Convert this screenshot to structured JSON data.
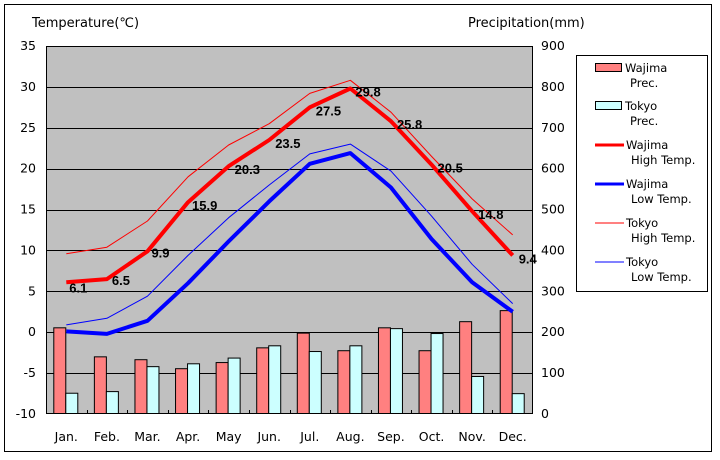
{
  "chart_data": {
    "type": "bar+line",
    "title": "",
    "ylabel_left": "Temperature(℃)",
    "ylabel_right": "Precipitation(mm)",
    "ylim_left": [
      -10,
      35
    ],
    "ylim_right": [
      0,
      900
    ],
    "yticks_left": [
      "35",
      "30",
      "25",
      "20",
      "15",
      "10",
      "5",
      "0",
      "-5",
      "-10"
    ],
    "yticks_right": [
      "900",
      "800",
      "700",
      "600",
      "500",
      "400",
      "300",
      "200",
      "100",
      "0"
    ],
    "grid": true,
    "legend_position": "right",
    "categories": [
      "Jan.",
      "Feb.",
      "Mar.",
      "Apr.",
      "May",
      "Jun.",
      "Jul.",
      "Aug.",
      "Sep.",
      "Oct.",
      "Nov.",
      "Dec."
    ],
    "series": [
      {
        "name": "Wajima Prec.",
        "legend": [
          "Wajima",
          "Prec."
        ],
        "kind": "bar",
        "axis": "right",
        "color": "#ff8080",
        "values": [
          212,
          141,
          134,
          112,
          127,
          163,
          199,
          156,
          212,
          156,
          227,
          254
        ]
      },
      {
        "name": "Tokyo Prec.",
        "legend": [
          "Tokyo",
          "Prec."
        ],
        "kind": "bar",
        "axis": "right",
        "color": "#ccffff",
        "values": [
          52,
          56,
          117,
          124,
          138,
          168,
          154,
          168,
          210,
          198,
          93,
          51
        ]
      },
      {
        "name": "Wajima High Temp.",
        "legend": [
          "Wajima",
          "High Temp."
        ],
        "kind": "line",
        "axis": "left",
        "color": "#ff0000",
        "width": "thick",
        "values": [
          6.1,
          6.5,
          9.9,
          15.9,
          20.3,
          23.5,
          27.5,
          29.8,
          25.8,
          20.5,
          14.8,
          9.4
        ],
        "labels": [
          "6.1",
          "6.5",
          "9.9",
          "15.9",
          "20.3",
          "23.5",
          "27.5",
          "29.8",
          "25.8",
          "20.5",
          "14.8",
          "9.4"
        ]
      },
      {
        "name": "Wajima Low Temp.",
        "legend": [
          "Wajima",
          "Low Temp."
        ],
        "kind": "line",
        "axis": "left",
        "color": "#0000ff",
        "width": "thick",
        "values": [
          0.1,
          -0.2,
          1.4,
          6.0,
          11.1,
          16.0,
          20.6,
          21.9,
          17.7,
          11.4,
          6.1,
          2.5
        ]
      },
      {
        "name": "Tokyo High Temp.",
        "legend": [
          "Tokyo",
          "High Temp."
        ],
        "kind": "line",
        "axis": "left",
        "color": "#ff0000",
        "width": "thin",
        "values": [
          9.6,
          10.4,
          13.6,
          19.0,
          22.9,
          25.5,
          29.2,
          30.8,
          26.9,
          21.5,
          16.3,
          11.9
        ]
      },
      {
        "name": "Tokyo Low Temp.",
        "legend": [
          "Tokyo",
          "Low Temp."
        ],
        "kind": "line",
        "axis": "left",
        "color": "#0000ff",
        "width": "thin",
        "values": [
          0.9,
          1.7,
          4.4,
          9.4,
          14.0,
          18.0,
          21.8,
          23.0,
          19.7,
          14.2,
          8.3,
          3.5
        ]
      }
    ],
    "colors": {
      "plot_background": "#c0c0c0",
      "gridline": "#000000"
    }
  }
}
